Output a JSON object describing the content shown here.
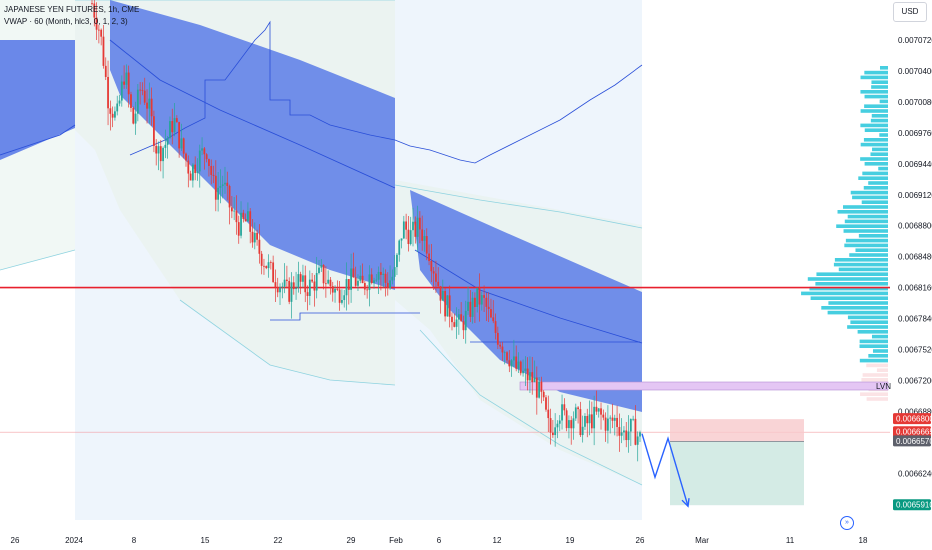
{
  "header": {
    "title": "JAPANESE YEN FUTURES, 1h, CME",
    "indicator": "VWAP · 60 (Month, hlc3, 0, 1, 2, 3)"
  },
  "currency": "USD",
  "colors": {
    "band_fill": "#5b7be8",
    "band_line": "#2a4fd8",
    "outer_fill": "#e8f3ef",
    "outer_line": "#8fd3e0",
    "highlight_bg": "#eef5fc",
    "hline": "#e8202e",
    "volume_profile": "#26c6da",
    "candle_up": "#26a69a",
    "candle_down": "#e53935",
    "arrow": "#2962ff",
    "stop_zone": "#f8c9cc",
    "target_zone": "#cfe9e2",
    "lvn_box": "#e4c6f4"
  },
  "chart_data": {
    "type": "candlestick",
    "symbol": "JAPANESE YEN FUTURES",
    "timeframe": "1h",
    "exchange": "CME",
    "x_labels": [
      "26",
      "2024",
      "8",
      "15",
      "22",
      "29",
      "Feb",
      "6",
      "12",
      "19",
      "26",
      "Mar",
      "11",
      "18"
    ],
    "y_ticks": [
      "0.0070720",
      "0.0070400",
      "0.0070080",
      "0.0069760",
      "0.0069440",
      "0.0069120",
      "0.0068800",
      "0.0068480",
      "0.0068160",
      "0.0067840",
      "0.0067520",
      "0.0067200",
      "0.0066880",
      "0.0066240"
    ],
    "ylim": [
      0.00654,
      0.00712
    ],
    "price_labels": [
      {
        "value": 0.00668,
        "label": "0.0066800",
        "color": "#e53935"
      },
      {
        "value": 0.0066665,
        "label": "0.0066665",
        "color": "#e53935"
      },
      {
        "value": 0.006657,
        "label": "0.0066570",
        "color": "#5d606b"
      },
      {
        "value": 0.006591,
        "label": "0.0065910",
        "color": "#089981"
      }
    ],
    "horizontal_line": 0.006816,
    "annotations": [
      {
        "text": "LVN"
      }
    ],
    "price_path": [
      [
        0,
        0.00711
      ],
      [
        1,
        0.00708
      ],
      [
        2,
        0.00701
      ],
      [
        3,
        0.00699
      ],
      [
        4,
        0.00704
      ],
      [
        5,
        0.006985
      ],
      [
        6,
        0.007025
      ],
      [
        7,
        0.007
      ],
      [
        8,
        0.006955
      ],
      [
        9,
        0.006965
      ],
      [
        10,
        0.00699
      ],
      [
        11,
        0.00696
      ],
      [
        12,
        0.006935
      ],
      [
        13,
        0.00695
      ],
      [
        14,
        0.00696
      ],
      [
        15,
        0.006915
      ],
      [
        16,
        0.006925
      ],
      [
        17,
        0.006895
      ],
      [
        18,
        0.00688
      ],
      [
        19,
        0.006885
      ],
      [
        20,
        0.00686
      ],
      [
        21,
        0.006845
      ],
      [
        22,
        0.00683
      ],
      [
        23,
        0.00682
      ],
      [
        24,
        0.00681
      ],
      [
        25,
        0.006825
      ],
      [
        26,
        0.006815
      ],
      [
        27,
        0.00682
      ],
      [
        28,
        0.00683
      ],
      [
        29,
        0.00682
      ],
      [
        30,
        0.00681
      ],
      [
        31,
        0.00682
      ],
      [
        32,
        0.006825
      ],
      [
        33,
        0.006815
      ],
      [
        34,
        0.00683
      ],
      [
        35,
        0.006835
      ],
      [
        36,
        0.00682
      ],
      [
        37,
        0.00683
      ],
      [
        38,
        0.00688
      ],
      [
        39,
        0.00687
      ],
      [
        40,
        0.00688
      ],
      [
        41,
        0.00686
      ],
      [
        42,
        0.00683
      ],
      [
        43,
        0.0068
      ],
      [
        44,
        0.00679
      ],
      [
        45,
        0.006775
      ],
      [
        46,
        0.00679
      ],
      [
        47,
        0.006805
      ],
      [
        48,
        0.0068
      ],
      [
        49,
        0.006775
      ],
      [
        50,
        0.00676
      ],
      [
        51,
        0.006745
      ],
      [
        52,
        0.00673
      ],
      [
        53,
        0.006725
      ],
      [
        54,
        0.00672
      ],
      [
        55,
        0.0067
      ],
      [
        56,
        0.006665
      ],
      [
        57,
        0.00669
      ],
      [
        58,
        0.00668
      ],
      [
        59,
        0.006685
      ],
      [
        60,
        0.00667
      ],
      [
        61,
        0.00668
      ],
      [
        62,
        0.006685
      ],
      [
        63,
        0.006675
      ],
      [
        64,
        0.00668
      ],
      [
        65,
        0.006665
      ],
      [
        66,
        0.00667
      ],
      [
        67,
        0.00666
      ]
    ],
    "projection": [
      [
        0.006665
      ],
      [
        0.00662
      ],
      [
        0.00666
      ],
      [
        0.00659
      ]
    ]
  }
}
